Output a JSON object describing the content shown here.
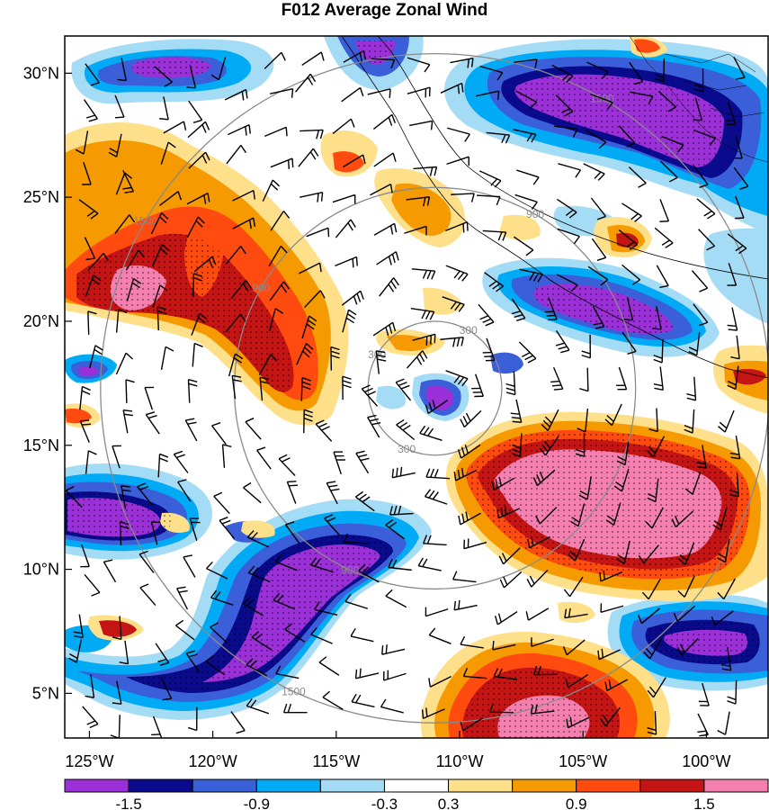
{
  "title": "F012 Average Zonal Wind",
  "map": {
    "lon_range": [
      -126,
      -97.5
    ],
    "lat_range": [
      3.2,
      31.5
    ],
    "lat_ticks": [
      {
        "value": 30,
        "label": "30°N"
      },
      {
        "value": 25,
        "label": "25°N"
      },
      {
        "value": 20,
        "label": "20°N"
      },
      {
        "value": 15,
        "label": "15°N"
      },
      {
        "value": 10,
        "label": "10°N"
      },
      {
        "value": 5,
        "label": "5°N"
      }
    ],
    "lon_ticks": [
      {
        "value": -125,
        "label": "125°W"
      },
      {
        "value": -120,
        "label": "120°W"
      },
      {
        "value": -115,
        "label": "115°W"
      },
      {
        "value": -110,
        "label": "110°W"
      },
      {
        "value": -105,
        "label": "105°W"
      },
      {
        "value": -100,
        "label": "100°W"
      }
    ],
    "range_rings": {
      "center_lon": -111,
      "center_lat": 17.3,
      "rings": [
        {
          "radius_km": 300,
          "label": "300"
        },
        {
          "radius_km": 900,
          "label": "900"
        },
        {
          "radius_km": 1500,
          "label": "1500"
        }
      ]
    },
    "colorbar": {
      "colors": [
        "#9b30d9",
        "#0a0a8c",
        "#3a5fd9",
        "#00aaf5",
        "#a5dcf5",
        "#ffffff",
        "#ffe08a",
        "#f59a00",
        "#ff4a10",
        "#c41414",
        "#f580b0"
      ],
      "labels": [
        {
          "after_bin": 1,
          "text": "-1.5"
        },
        {
          "after_bin": 3,
          "text": "-0.9"
        },
        {
          "after_bin": 5,
          "text": "-0.3"
        },
        {
          "after_bin": 6,
          "text": "0.3"
        },
        {
          "after_bin": 8,
          "text": "0.9"
        },
        {
          "after_bin": 10,
          "text": "1.5"
        }
      ]
    }
  }
}
